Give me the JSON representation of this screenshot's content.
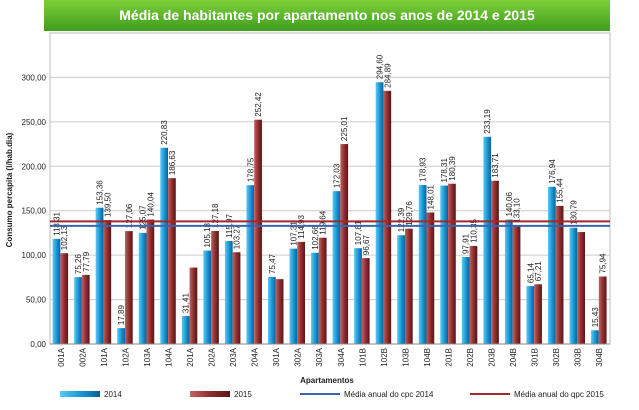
{
  "chart_data": {
    "type": "bar",
    "title": "Média de habitantes por apartamento nos anos de 2014 e 2015",
    "y_label": "Consumo percapita (l/hab.dia)",
    "x_label": "Apartamentos",
    "categories": [
      "001A",
      "002A",
      "101A",
      "102A",
      "103A",
      "104A",
      "201A",
      "202A",
      "203A",
      "204A",
      "301A",
      "302A",
      "303A",
      "304A",
      "101B",
      "102B",
      "103B",
      "104B",
      "201B",
      "202B",
      "203B",
      "204B",
      "301B",
      "302B",
      "303B",
      "304B"
    ],
    "series": [
      {
        "name": "2014",
        "color": "#1a9ad6",
        "values": [
          118.31,
          75.26,
          153.36,
          17.89,
          125.07,
          220.83,
          31.41,
          105.18,
          115.97,
          178.75,
          75.47,
          107.31,
          102.66,
          172.03,
          107.81,
          294.6,
          122.39,
          178.93,
          178.31,
          97.91,
          233.19,
          140.06,
          65.14,
          176.94,
          130.79,
          15.43
        ],
        "value_labels": [
          "118,31",
          "75,26",
          "153,36",
          "17,89",
          "125,07",
          "220,83",
          "31,41",
          "105,18",
          "115,97",
          "178,75",
          "75,47",
          "107,31",
          "102,66",
          "172,03",
          "107,81",
          "294,60",
          "122,39",
          "178,93",
          "178,31",
          "97,91",
          "233,19",
          "140,06",
          "65,14",
          "176,94",
          "130,79",
          "15,43"
        ]
      },
      {
        "name": "2015",
        "color": "#8e2f2f",
        "values": [
          102.13,
          77.79,
          139.5,
          127.06,
          140.04,
          186.63,
          86,
          127.18,
          103.27,
          252.42,
          73,
          114.93,
          119.64,
          225.01,
          96.67,
          284.89,
          129.76,
          148.01,
          180.39,
          110.35,
          183.71,
          133.1,
          67.21,
          155.44,
          126,
          75.94
        ],
        "value_labels": [
          "102,13",
          "77,79",
          "139,50",
          "127,06",
          "140,04",
          "186,63",
          null,
          "127,18",
          "103,27",
          "252,42",
          null,
          "114,93",
          "119,64",
          "225,01",
          "96,67",
          "284,89",
          "129,76",
          "148,01",
          "180,39",
          "110,35",
          "183,71",
          "133,10",
          "67,21",
          "155,44",
          null,
          "75,94"
        ]
      }
    ],
    "reference_lines": [
      {
        "name": "Média anual do cpc 2014",
        "color": "#3a66b0",
        "value": 133
      },
      {
        "name": "Média anual do qpc 2015",
        "color": "#a02a2a",
        "value": 138
      }
    ],
    "ylim": [
      0,
      350
    ],
    "yticks": [
      {
        "value": 0,
        "label": "0,00"
      },
      {
        "value": 50,
        "label": "50,00"
      },
      {
        "value": 100,
        "label": "100,00"
      },
      {
        "value": 150,
        "label": "150,00"
      },
      {
        "value": 200,
        "label": "200,00"
      },
      {
        "value": 250,
        "label": "250,00"
      },
      {
        "value": 300,
        "label": "300,00"
      }
    ],
    "grid": true
  }
}
